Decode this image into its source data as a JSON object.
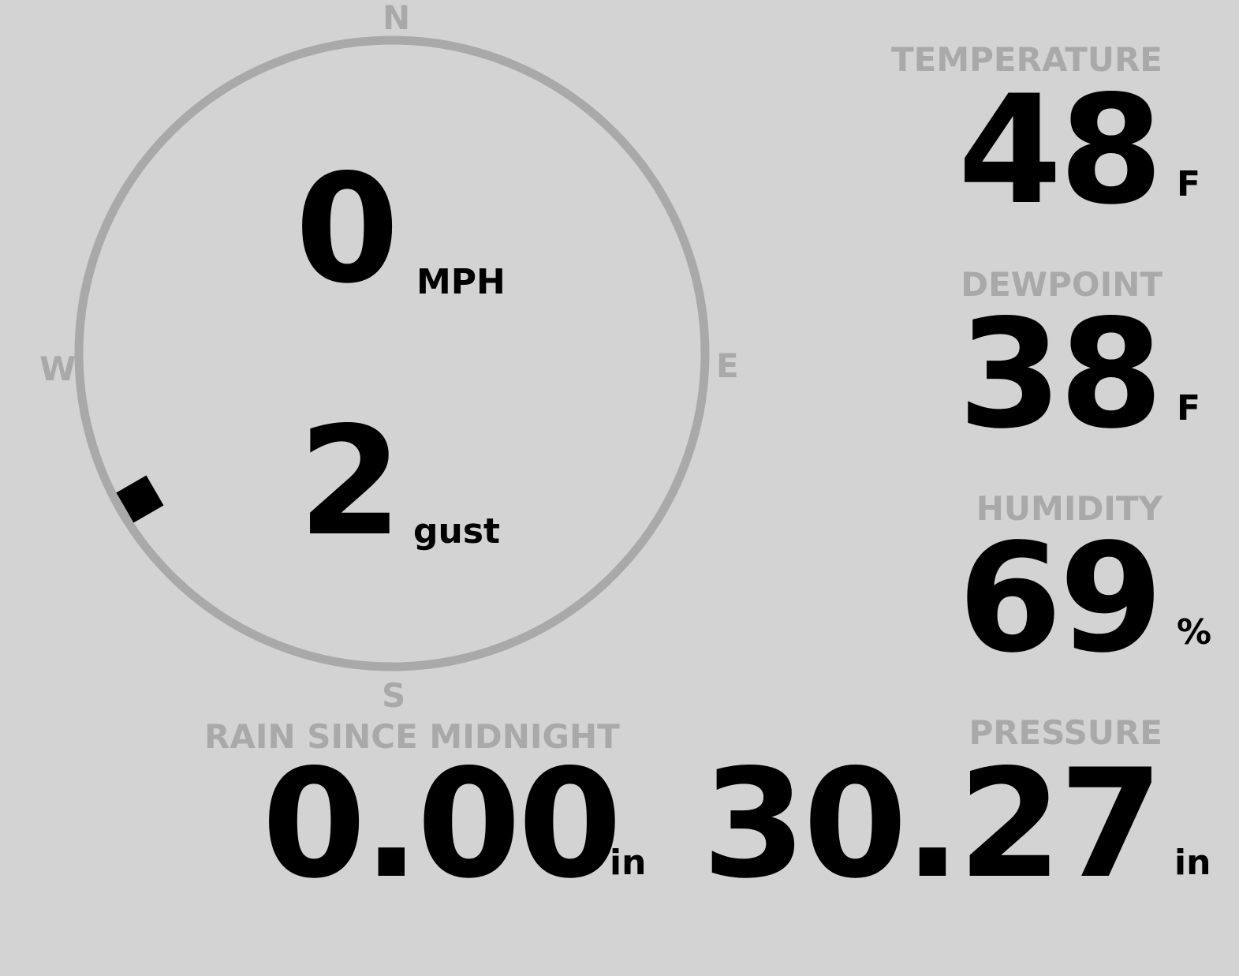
{
  "compass": {
    "n": "N",
    "e": "E",
    "s": "S",
    "w": "W",
    "wind_direction_deg": 240
  },
  "wind": {
    "speed": "0",
    "speed_unit": "MPH",
    "gust": "2",
    "gust_unit": "gust"
  },
  "temperature": {
    "label": "TEMPERATURE",
    "value": "48",
    "unit": "F"
  },
  "dewpoint": {
    "label": "DEWPOINT",
    "value": "38",
    "unit": "F"
  },
  "humidity": {
    "label": "HUMIDITY",
    "value": "69",
    "unit": "%"
  },
  "rain": {
    "label": "RAIN SINCE MIDNIGHT",
    "value": "0.00",
    "unit": "in"
  },
  "pressure": {
    "label": "PRESSURE",
    "value": "30.27",
    "unit": "in"
  },
  "colors": {
    "background": "#d3d3d3",
    "label": "#a9a9a9",
    "value": "#000000"
  }
}
